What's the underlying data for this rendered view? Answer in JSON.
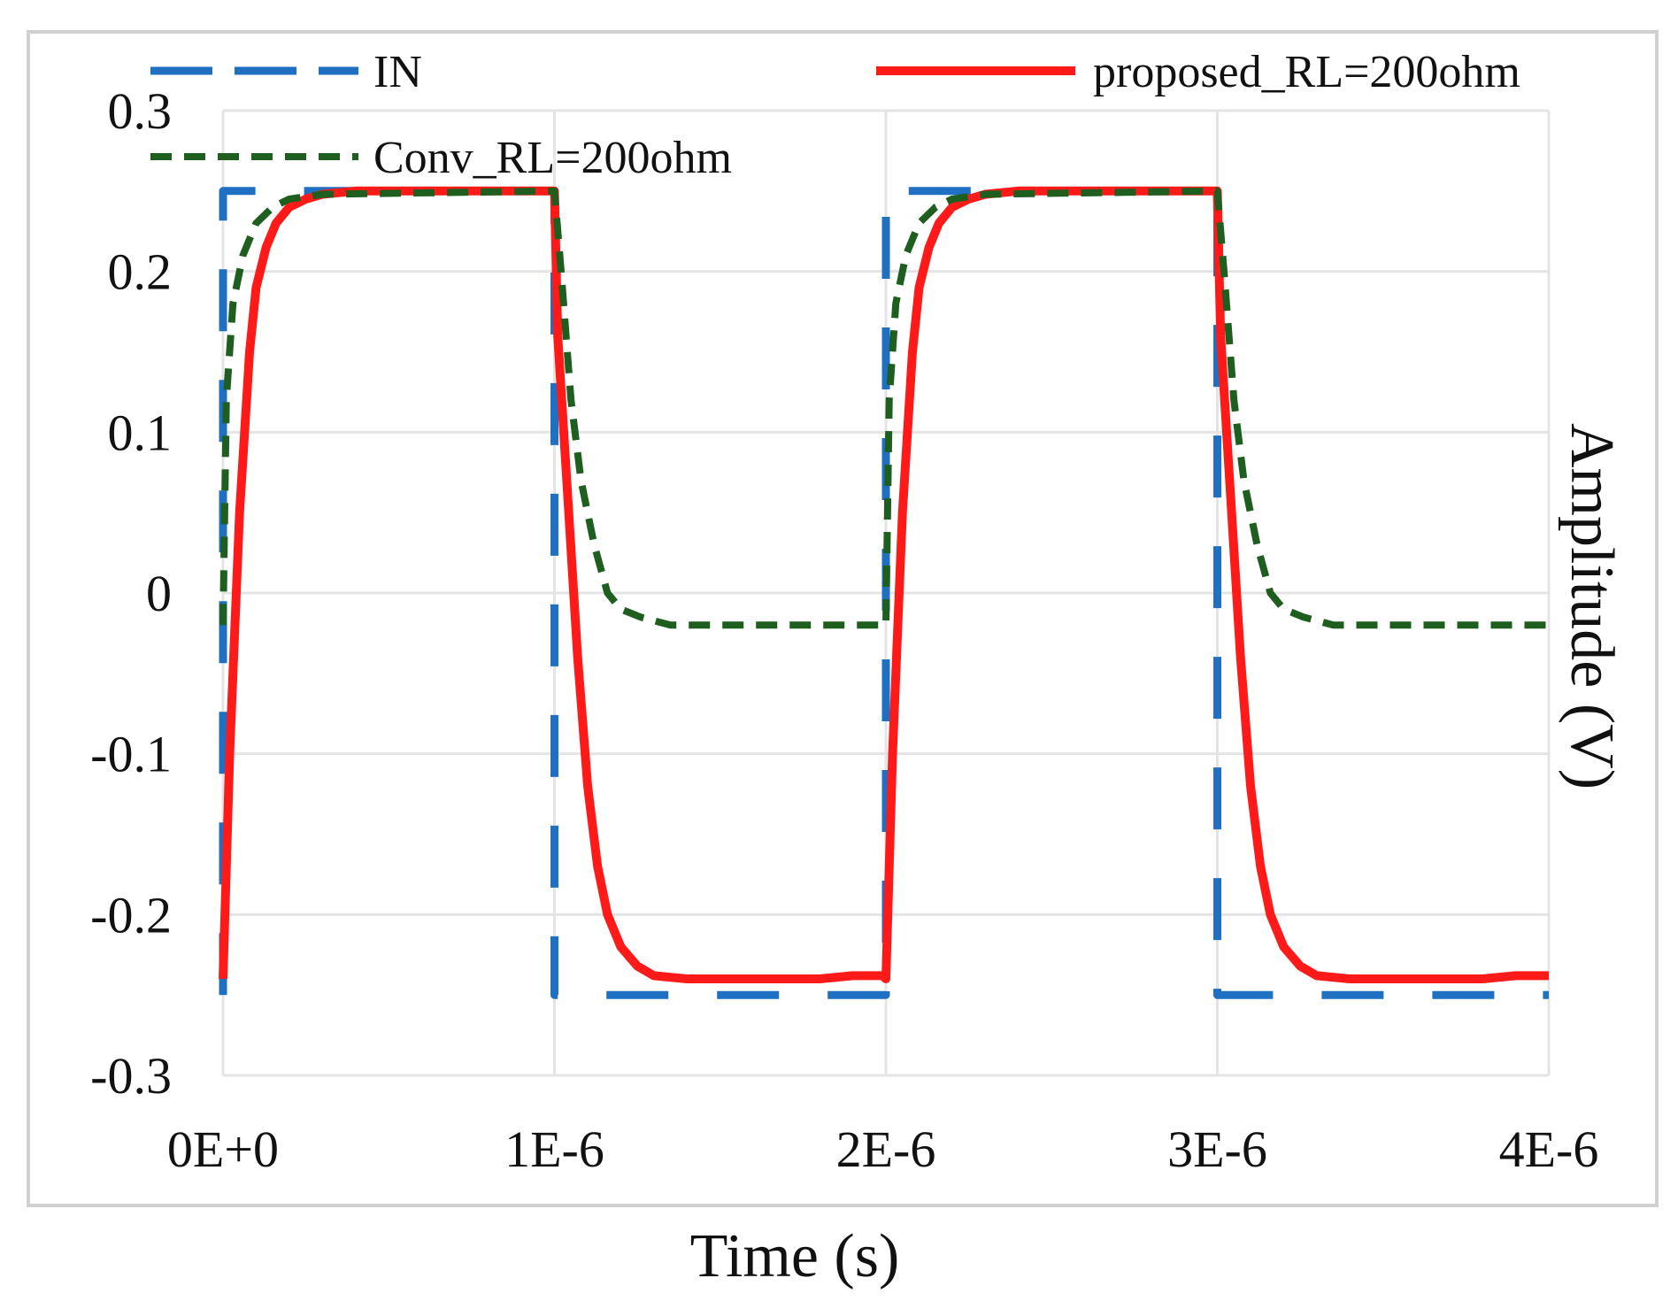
{
  "chart_data": {
    "type": "line",
    "xlabel": "Time (s)",
    "ylabel": "Amplitude (V)",
    "xlim": [
      0,
      4e-06
    ],
    "ylim": [
      -0.3,
      0.3
    ],
    "x_ticks": [
      {
        "value": 0,
        "label": "0E+0"
      },
      {
        "value": 1e-06,
        "label": "1E-6"
      },
      {
        "value": 2e-06,
        "label": "2E-6"
      },
      {
        "value": 3e-06,
        "label": "3E-6"
      },
      {
        "value": 4e-06,
        "label": "4E-6"
      }
    ],
    "y_ticks": [
      {
        "value": 0.3,
        "label": "0.3"
      },
      {
        "value": 0.2,
        "label": "0.2"
      },
      {
        "value": 0.1,
        "label": "0.1"
      },
      {
        "value": 0,
        "label": "0"
      },
      {
        "value": -0.1,
        "label": "-0.1"
      },
      {
        "value": -0.2,
        "label": "-0.2"
      },
      {
        "value": -0.3,
        "label": "-0.3"
      }
    ],
    "grid": true,
    "legend_position": "top",
    "series": [
      {
        "name": "IN",
        "color": "#1f6fc2",
        "style": "long-dash",
        "x": [
          0,
          0,
          1e-06,
          1e-06,
          2e-06,
          2e-06,
          3e-06,
          3e-06,
          4e-06
        ],
        "y": [
          -0.25,
          0.25,
          0.25,
          -0.25,
          -0.25,
          0.25,
          0.25,
          -0.25,
          -0.25
        ]
      },
      {
        "name": "proposed_RL=200ohm",
        "color": "#ff1a1a",
        "style": "solid",
        "x": [
          0,
          2e-08,
          5e-08,
          8e-08,
          1e-07,
          1.3e-07,
          1.6e-07,
          2e-07,
          2.5e-07,
          3e-07,
          4e-07,
          1e-06,
          1.01e-06,
          1.04e-06,
          1.07e-06,
          1.1e-06,
          1.13e-06,
          1.16e-06,
          1.2e-06,
          1.25e-06,
          1.3e-06,
          1.4e-06,
          1.5e-06,
          1.8e-06,
          1.9e-06,
          1.99e-06,
          2e-06,
          2.02e-06,
          2.05e-06,
          2.08e-06,
          2.1e-06,
          2.13e-06,
          2.16e-06,
          2.2e-06,
          2.25e-06,
          2.3e-06,
          2.4e-06,
          3e-06,
          3.01e-06,
          3.04e-06,
          3.07e-06,
          3.1e-06,
          3.13e-06,
          3.16e-06,
          3.2e-06,
          3.25e-06,
          3.3e-06,
          3.4e-06,
          3.5e-06,
          3.8e-06,
          3.9e-06,
          4e-06
        ],
        "y": [
          -0.24,
          -0.1,
          0.05,
          0.15,
          0.19,
          0.215,
          0.23,
          0.24,
          0.245,
          0.248,
          0.25,
          0.25,
          0.16,
          0.06,
          -0.04,
          -0.12,
          -0.17,
          -0.2,
          -0.22,
          -0.232,
          -0.238,
          -0.24,
          -0.24,
          -0.24,
          -0.238,
          -0.238,
          -0.24,
          -0.1,
          0.05,
          0.15,
          0.19,
          0.215,
          0.23,
          0.24,
          0.245,
          0.248,
          0.25,
          0.25,
          0.16,
          0.06,
          -0.04,
          -0.12,
          -0.17,
          -0.2,
          -0.22,
          -0.232,
          -0.238,
          -0.24,
          -0.24,
          -0.24,
          -0.238,
          -0.238
        ]
      },
      {
        "name": "Conv_RL=200ohm",
        "color": "#1e5e1e",
        "style": "short-dash",
        "x": [
          0,
          1e-08,
          3e-08,
          6e-08,
          1e-07,
          1.5e-07,
          2e-07,
          3e-07,
          1e-06,
          1.02e-06,
          1.05e-06,
          1.08e-06,
          1.12e-06,
          1.16e-06,
          1.2e-06,
          1.26e-06,
          1.35e-06,
          1.45e-06,
          2e-06,
          2.01e-06,
          2.03e-06,
          2.06e-06,
          2.1e-06,
          2.15e-06,
          2.2e-06,
          2.3e-06,
          3e-06,
          3.02e-06,
          3.05e-06,
          3.08e-06,
          3.12e-06,
          3.16e-06,
          3.2e-06,
          3.26e-06,
          3.35e-06,
          3.45e-06,
          4e-06
        ],
        "y": [
          -0.02,
          0.12,
          0.18,
          0.21,
          0.23,
          0.24,
          0.245,
          0.248,
          0.25,
          0.2,
          0.12,
          0.07,
          0.03,
          0.0,
          -0.01,
          -0.015,
          -0.02,
          -0.02,
          -0.02,
          0.12,
          0.18,
          0.21,
          0.23,
          0.24,
          0.245,
          0.248,
          0.25,
          0.2,
          0.12,
          0.07,
          0.03,
          0.0,
          -0.01,
          -0.015,
          -0.02,
          -0.02,
          -0.02
        ]
      }
    ]
  }
}
